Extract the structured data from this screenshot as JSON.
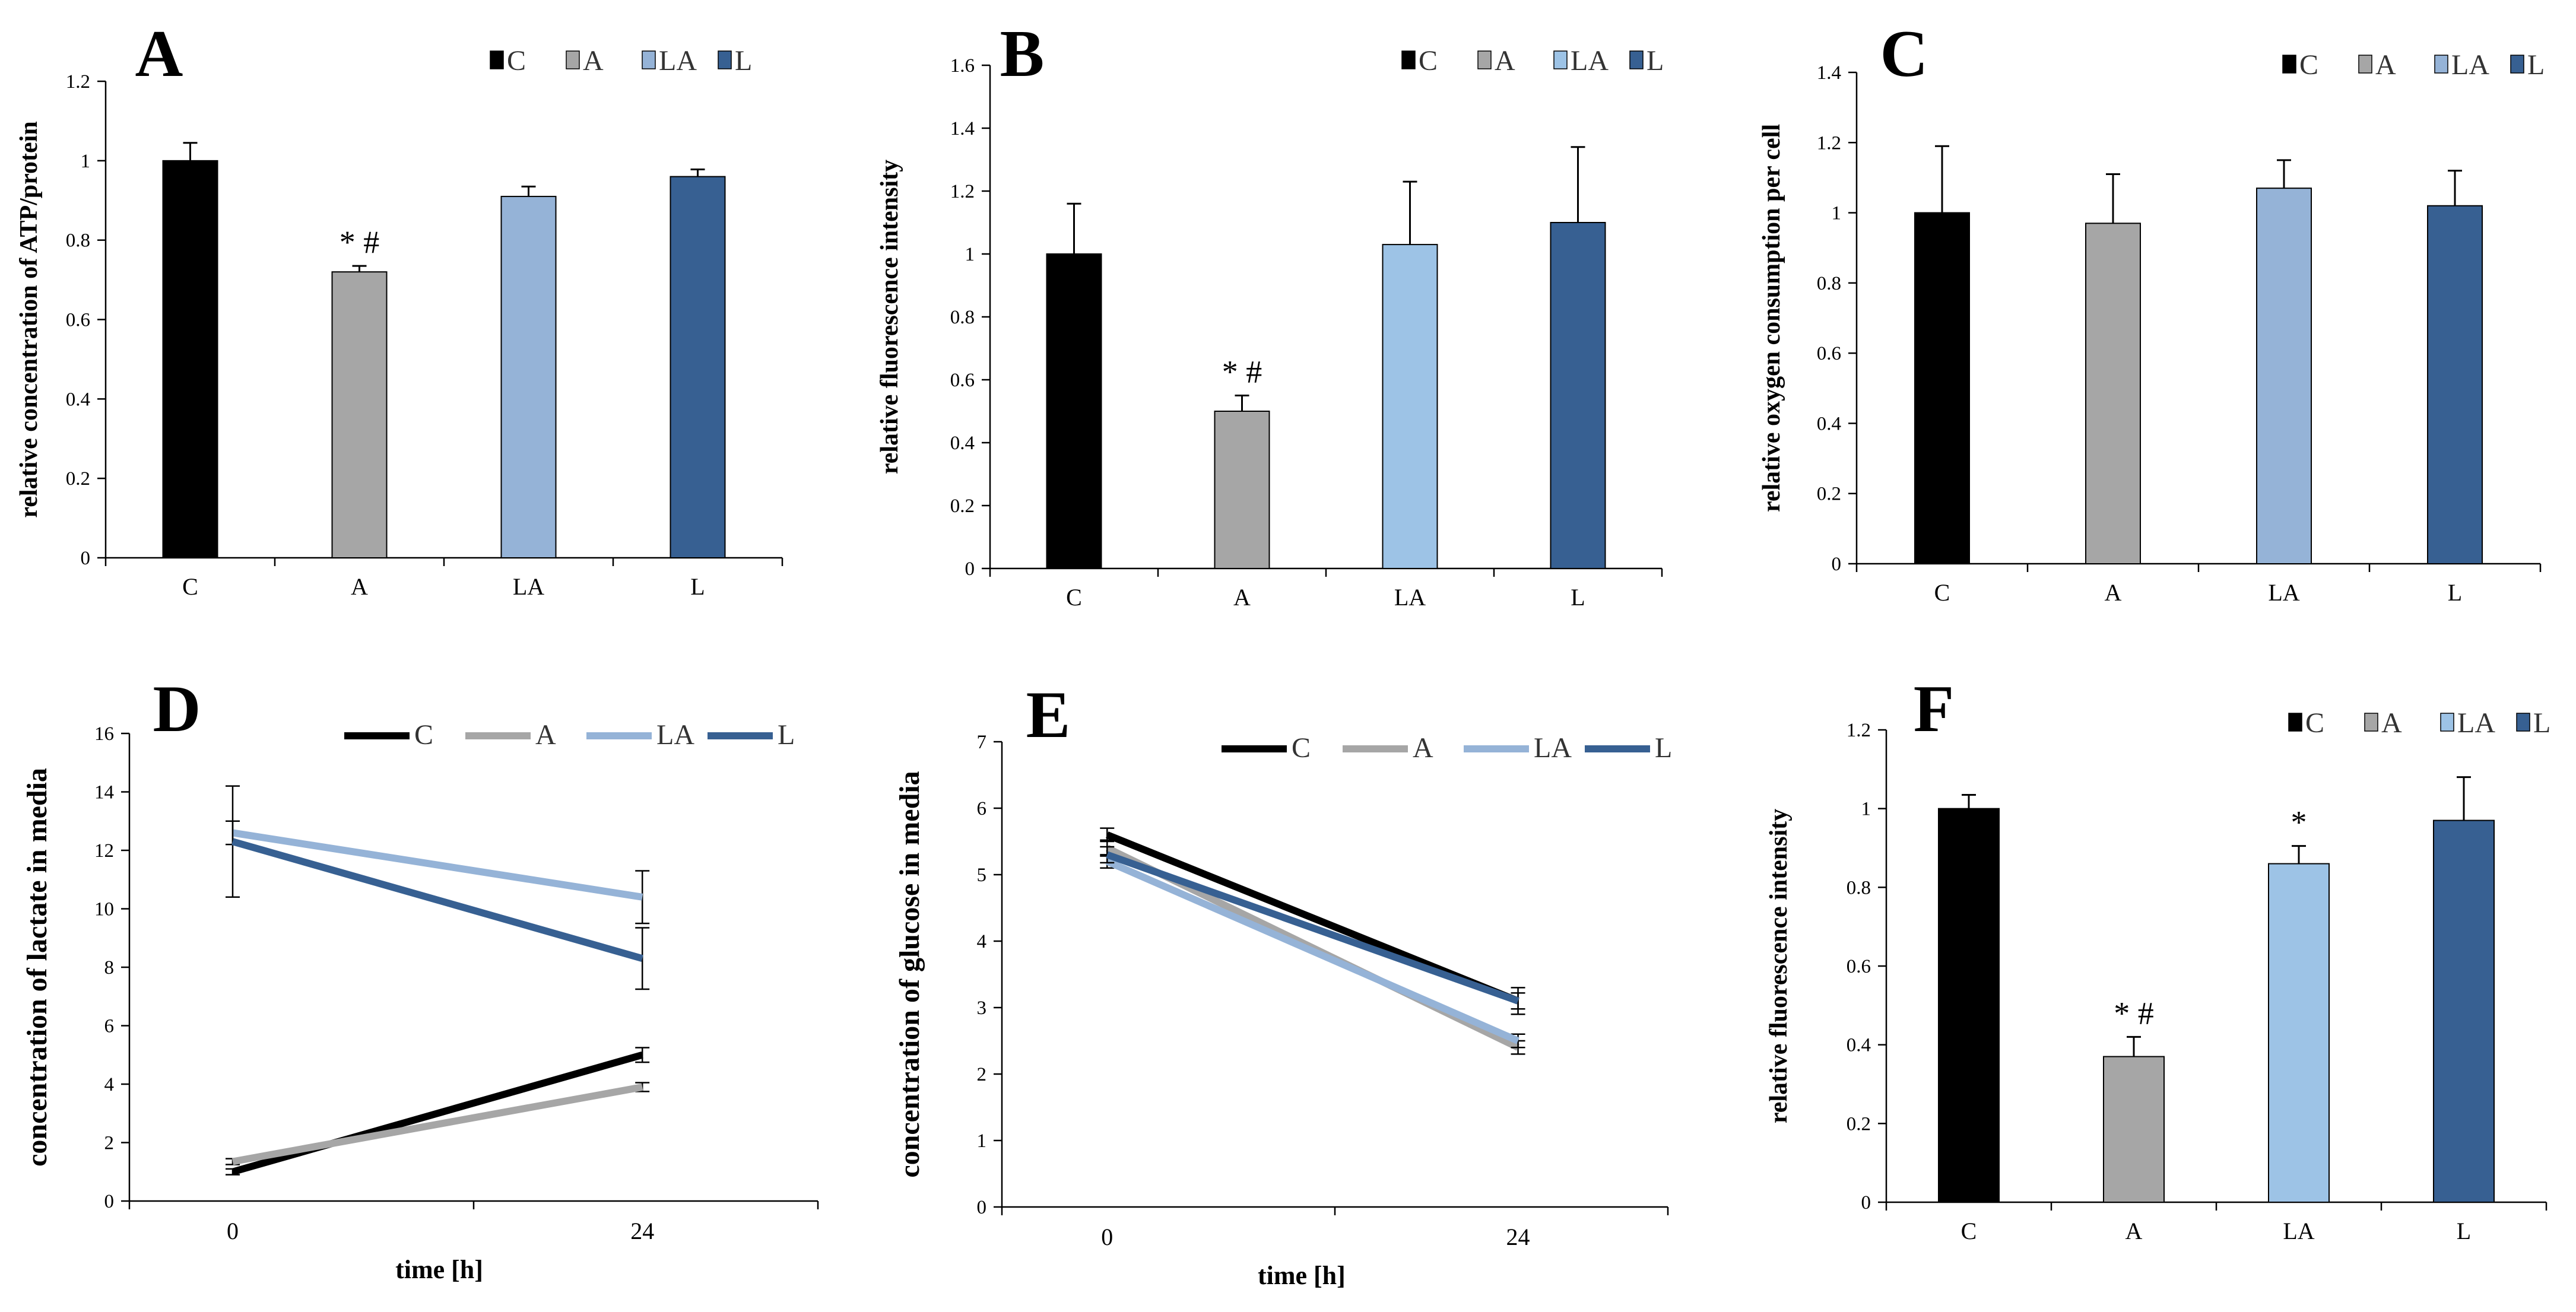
{
  "chart_data": [
    {
      "panel": "A",
      "type": "bar",
      "categories": [
        "C",
        "A",
        "LA",
        "L"
      ],
      "values": [
        1.0,
        0.72,
        0.91,
        0.96
      ],
      "errors": [
        0.045,
        0.015,
        0.025,
        0.018
      ],
      "annotations": [
        "",
        "* #",
        "",
        ""
      ],
      "ylabel": "relative concentration of ATP/protein",
      "ylim": [
        0,
        1.2
      ],
      "ystep": 0.2,
      "yticks": [
        "0",
        "0.2",
        "0.4",
        "0.6",
        "0.8",
        "1",
        "1.2"
      ],
      "legend": [
        "C",
        "A",
        "LA",
        "L"
      ],
      "colors": [
        "#000000",
        "#a6a6a6",
        "#95b3d7",
        "#376092"
      ]
    },
    {
      "panel": "B",
      "type": "bar",
      "categories": [
        "C",
        "A",
        "LA",
        "L"
      ],
      "values": [
        1.0,
        0.5,
        1.03,
        1.1
      ],
      "errors": [
        0.16,
        0.05,
        0.2,
        0.24
      ],
      "annotations": [
        "",
        "* #",
        "",
        ""
      ],
      "ylabel": "relative fluorescence intensity",
      "ylim": [
        0,
        1.6
      ],
      "ystep": 0.2,
      "yticks": [
        "0",
        "0.2",
        "0.4",
        "0.6",
        "0.8",
        "1",
        "1.2",
        "1.4",
        "1.6"
      ],
      "legend": [
        "C",
        "A",
        "LA",
        "L"
      ],
      "colors": [
        "#000000",
        "#a6a6a6",
        "#9dc3e6",
        "#376092"
      ]
    },
    {
      "panel": "C",
      "type": "bar",
      "categories": [
        "C",
        "A",
        "LA",
        "L"
      ],
      "values": [
        1.0,
        0.97,
        1.07,
        1.02
      ],
      "errors": [
        0.19,
        0.14,
        0.08,
        0.1
      ],
      "annotations": [
        "",
        "",
        "",
        ""
      ],
      "ylabel": "relative oxygen consumption per cell",
      "ylim": [
        0,
        1.4
      ],
      "ystep": 0.2,
      "yticks": [
        "0",
        "0.2",
        "0.4",
        "0.6",
        "0.8",
        "1",
        "1.2",
        "1.4"
      ],
      "legend": [
        "C",
        "A",
        "LA",
        "L"
      ],
      "colors": [
        "#000000",
        "#a6a6a6",
        "#95b3d7",
        "#376092"
      ]
    },
    {
      "panel": "D",
      "type": "line",
      "x": [
        "0",
        "24"
      ],
      "series": [
        {
          "name": "C",
          "values": [
            1.0,
            5.0
          ],
          "errors": [
            0.1,
            0.25
          ],
          "color": "#000000"
        },
        {
          "name": "A",
          "values": [
            1.35,
            3.9
          ],
          "errors": [
            0.1,
            0.15
          ],
          "color": "#a6a6a6"
        },
        {
          "name": "LA",
          "values": [
            12.6,
            10.4
          ],
          "errors": [
            0.4,
            0.9
          ],
          "color": "#95b3d7"
        },
        {
          "name": "L",
          "values": [
            12.3,
            8.3
          ],
          "errors": [
            1.9,
            1.05
          ],
          "color": "#376092"
        }
      ],
      "xlabel": "time [h]",
      "ylabel": "concentration of lactate in media",
      "ylim": [
        0,
        16
      ],
      "ystep": 2,
      "yticks": [
        "0",
        "2",
        "4",
        "6",
        "8",
        "10",
        "12",
        "14",
        "16"
      ]
    },
    {
      "panel": "E",
      "type": "line",
      "x": [
        "0",
        "24"
      ],
      "series": [
        {
          "name": "C",
          "values": [
            5.6,
            3.1
          ],
          "errors": [
            0.1,
            0.12
          ],
          "color": "#000000"
        },
        {
          "name": "A",
          "values": [
            5.4,
            2.4
          ],
          "errors": [
            0.12,
            0.1
          ],
          "color": "#a6a6a6"
        },
        {
          "name": "LA",
          "values": [
            5.2,
            2.5
          ],
          "errors": [
            0.1,
            0.1
          ],
          "color": "#95b3d7"
        },
        {
          "name": "L",
          "values": [
            5.3,
            3.1
          ],
          "errors": [
            0.12,
            0.2
          ],
          "color": "#376092"
        }
      ],
      "xlabel": "time [h]",
      "ylabel": "concentration of glucose in media",
      "ylim": [
        0,
        7
      ],
      "ystep": 1,
      "yticks": [
        "0",
        "1",
        "2",
        "3",
        "4",
        "5",
        "6",
        "7"
      ]
    },
    {
      "panel": "F",
      "type": "bar",
      "categories": [
        "C",
        "A",
        "LA",
        "L"
      ],
      "values": [
        1.0,
        0.37,
        0.86,
        0.97
      ],
      "errors": [
        0.035,
        0.05,
        0.045,
        0.11
      ],
      "annotations": [
        "",
        "* #",
        "*",
        ""
      ],
      "ylabel": "relative fluorescence intensity",
      "ylim": [
        0,
        1.2
      ],
      "ystep": 0.2,
      "yticks": [
        "0",
        "0.2",
        "0.4",
        "0.6",
        "0.8",
        "1",
        "1.2"
      ],
      "legend": [
        "C",
        "A",
        "LA",
        "L"
      ],
      "colors": [
        "#000000",
        "#a6a6a6",
        "#9dc3e6",
        "#376092"
      ]
    }
  ]
}
